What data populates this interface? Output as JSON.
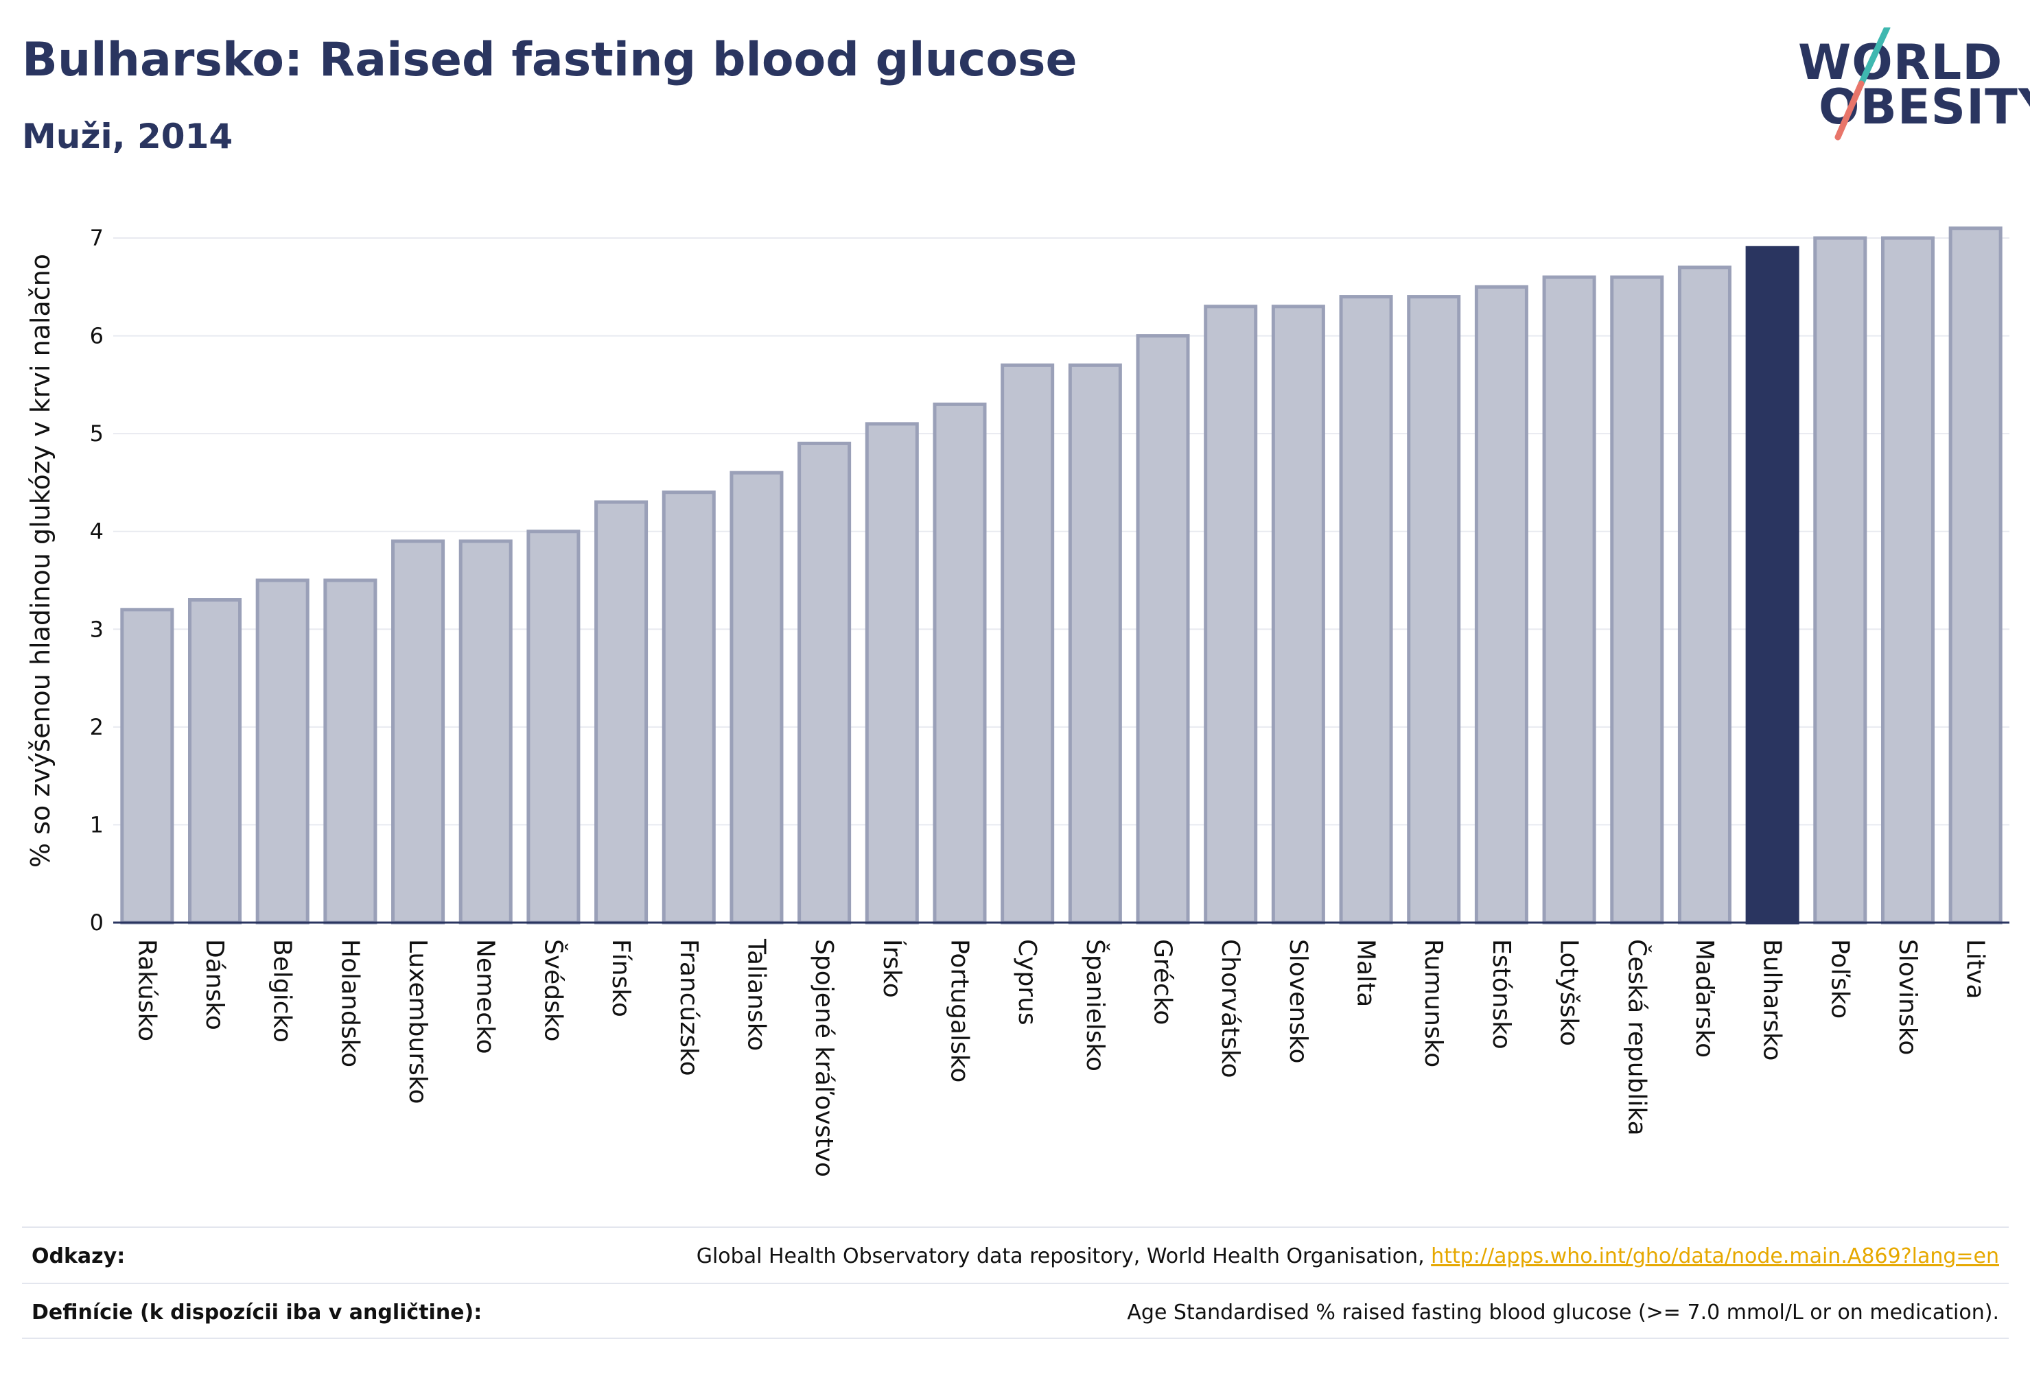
{
  "title": "Bulharsko: Raised fasting blood glucose",
  "subtitle": "Muži, 2014",
  "logo": {
    "line1": "WORLD",
    "line2": "OBESITY",
    "accent_top": "#3fb8b0",
    "accent_bottom": "#e8756a"
  },
  "colors": {
    "bar_fill": "#bfc3d1",
    "bar_stroke": "#9aa0b8",
    "highlight": "#2a3560",
    "text": "#2a3560"
  },
  "chart_data": {
    "type": "bar",
    "ylabel": "% so zvýšenou hladinou glukózy v krvi nalačno",
    "ylim": [
      0,
      7.4
    ],
    "yticks": [
      0,
      1,
      2,
      3,
      4,
      5,
      6,
      7
    ],
    "grid": true,
    "highlight": "Bulharsko",
    "categories": [
      "Rakúsko",
      "Dánsko",
      "Belgicko",
      "Holandsko",
      "Luxembursko",
      "Nemecko",
      "Švédsko",
      "Fínsko",
      "Francúzsko",
      "Taliansko",
      "Spojené kráľovstvo",
      "Írsko",
      "Portugalsko",
      "Cyprus",
      "Španielsko",
      "Grécko",
      "Chorvátsko",
      "Slovensko",
      "Malta",
      "Rumunsko",
      "Estónsko",
      "Lotyšsko",
      "Česká republika",
      "Maďarsko",
      "Bulharsko",
      "Poľsko",
      "Slovinsko",
      "Litva"
    ],
    "values": [
      3.2,
      3.3,
      3.5,
      3.5,
      3.9,
      3.9,
      4.0,
      4.3,
      4.4,
      4.6,
      4.9,
      5.1,
      5.3,
      5.7,
      5.7,
      6.0,
      6.3,
      6.3,
      6.4,
      6.4,
      6.5,
      6.6,
      6.6,
      6.7,
      6.9,
      7.0,
      7.0,
      7.1
    ]
  },
  "footer": {
    "sources_label": "Odkazy:",
    "sources_text": "Global Health Observatory data repository, World Health Organisation, ",
    "sources_link": "http://apps.who.int/gho/data/node.main.A869?lang=en",
    "definitions_label": "Definície (k dispozícii iba v angličtine):",
    "definitions_text": "Age Standardised % raised fasting blood glucose (>= 7.0 mmol/L or on medication)."
  }
}
